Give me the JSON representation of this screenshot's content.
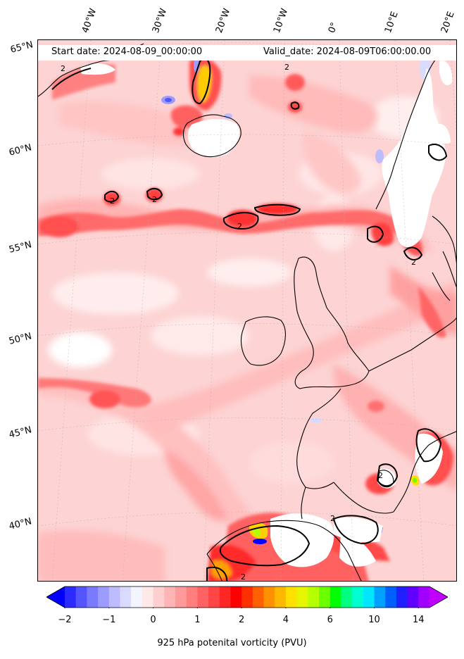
{
  "map": {
    "start_date": "Start date: 2024-08-09_00:00:00",
    "valid_date": "Valid_date: 2024-08-09T06:00:00.00",
    "contour_label": "2",
    "lon_ticks": [
      "40°W",
      "30°W",
      "20°W",
      "10°W",
      "0°",
      "10°E",
      "20°E"
    ],
    "lat_ticks": [
      "65°N",
      "60°N",
      "55°N",
      "50°N",
      "45°N",
      "40°N"
    ]
  },
  "colorbar": {
    "title": "925 hPa potenital vorticity (PVU)",
    "tick_labels": [
      "−2",
      "−1",
      "0",
      "1",
      "2",
      "4",
      "6",
      "10",
      "14"
    ],
    "colors": [
      "#0000ff",
      "#2b2bff",
      "#5555ff",
      "#7a7aff",
      "#9c9cff",
      "#bcbcff",
      "#dadaff",
      "#f4f4ff",
      "#ffe8e8",
      "#ffcfcf",
      "#ffb5b5",
      "#ff9a9a",
      "#ff7f7f",
      "#ff6262",
      "#ff4545",
      "#ff2626",
      "#ff0000",
      "#ff3000",
      "#ff6000",
      "#ff9000",
      "#ffb800",
      "#ffe000",
      "#e6f500",
      "#b4ff00",
      "#6cff00",
      "#00ff00",
      "#00ff80",
      "#00ffd0",
      "#00e6ff",
      "#00a0ff",
      "#0060ff",
      "#2020ff",
      "#6000ff",
      "#a000ff",
      "#c000ff"
    ],
    "ticks_at_index": [
      0,
      4,
      8,
      12,
      16,
      20,
      24,
      28,
      32
    ]
  }
}
